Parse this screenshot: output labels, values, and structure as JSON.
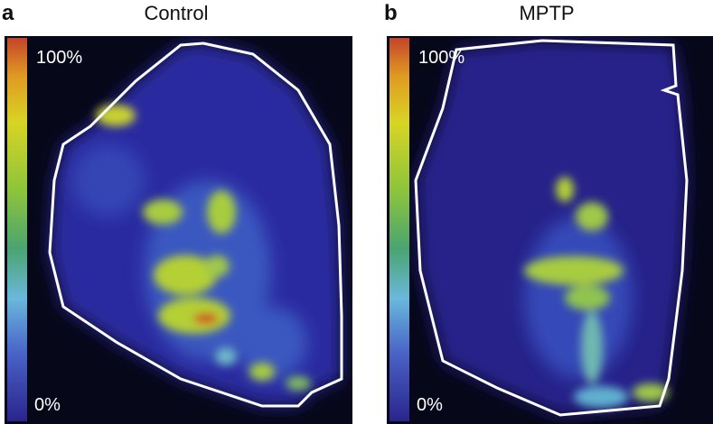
{
  "panels": [
    {
      "label": "a",
      "title": "Control",
      "scale_max": "100%",
      "scale_min": "0%"
    },
    {
      "label": "b",
      "title": "MPTP",
      "scale_max": "100%",
      "scale_min": "0%"
    }
  ]
}
